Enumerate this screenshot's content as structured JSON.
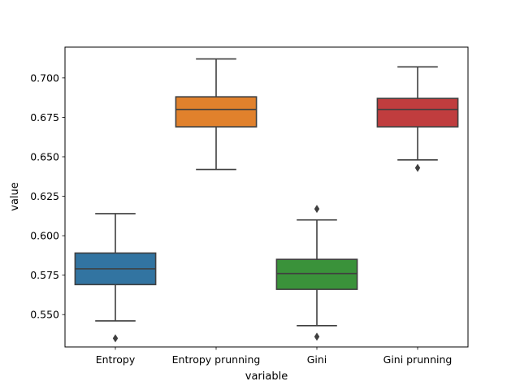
{
  "chart_data": {
    "type": "box",
    "title": "",
    "xlabel": "variable",
    "ylabel": "value",
    "ylim": [
      0.5295,
      0.7195
    ],
    "yticks": [
      0.55,
      0.575,
      0.6,
      0.625,
      0.65,
      0.675,
      0.7
    ],
    "ytick_labels": [
      "0.550",
      "0.575",
      "0.600",
      "0.625",
      "0.650",
      "0.675",
      "0.700"
    ],
    "grid": false,
    "categories": [
      "Entropy",
      "Entropy prunning",
      "Gini",
      "Gini prunning"
    ],
    "boxes": [
      {
        "category": "Entropy",
        "color": "#3274a1",
        "whislo": 0.546,
        "q1": 0.569,
        "med": 0.579,
        "q3": 0.589,
        "whishi": 0.614,
        "fliers": [
          0.535
        ]
      },
      {
        "category": "Entropy prunning",
        "color": "#e1812c",
        "whislo": 0.642,
        "q1": 0.669,
        "med": 0.68,
        "q3": 0.688,
        "whishi": 0.712,
        "fliers": []
      },
      {
        "category": "Gini",
        "color": "#3a923a",
        "whislo": 0.543,
        "q1": 0.566,
        "med": 0.576,
        "q3": 0.585,
        "whishi": 0.61,
        "fliers": [
          0.536,
          0.617
        ]
      },
      {
        "category": "Gini prunning",
        "color": "#c03d3e",
        "whislo": 0.648,
        "q1": 0.669,
        "med": 0.68,
        "q3": 0.687,
        "whishi": 0.707,
        "fliers": [
          0.643
        ]
      }
    ]
  }
}
